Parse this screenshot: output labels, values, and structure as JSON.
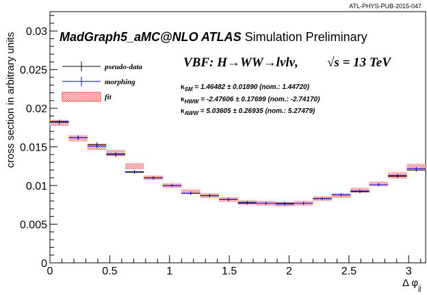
{
  "colors": {
    "pseudo_data": "#000000",
    "morphing": "#0000ff",
    "fit_fill": "#ff4d4d",
    "fit_hatch_bg": "#ffd6d6",
    "axes": "#000000"
  },
  "header": {
    "ref": "ATL-PHYS-PUB-2015-047"
  },
  "titles": {
    "main_bold": "MadGraph5_aMC@NLO ATLAS",
    "main_rest": " Simulation Preliminary",
    "process": "VBF: H→WW→lνlν,",
    "energy": "√s = 13 TeV"
  },
  "legend": [
    {
      "label": "pseudo-data",
      "style": "pseudo"
    },
    {
      "label": "morphing",
      "style": "morph"
    },
    {
      "label": "fit",
      "style": "fit"
    }
  ],
  "kappas": [
    {
      "sym": "κ",
      "sub": "SM",
      "text": " = 1.46482 ± 0.01890 (nom.: 1.44720)"
    },
    {
      "sym": "κ",
      "sub": "HWW",
      "text": " = -2.47606 ± 0.17699 (nom.: -2.74170)"
    },
    {
      "sym": "κ",
      "sub": "AWW",
      "text": " = 5.03605 ± 0.26935 (nom.: 5.27479)"
    }
  ],
  "chart_data": {
    "type": "histogram",
    "xlabel": "Δ φ",
    "xlabel_sub": "jj",
    "ylabel": "cross section in arbitrary units",
    "xlim": [
      0,
      3.1416
    ],
    "ylim": [
      0,
      0.0325
    ],
    "xticks": [
      0,
      0.5,
      1,
      1.5,
      2,
      2.5,
      3
    ],
    "xtick_labels": [
      "0",
      "0.5",
      "1",
      "1.5",
      "2",
      "2.5",
      "3"
    ],
    "yticks": [
      0,
      0.005,
      0.01,
      0.015,
      0.02,
      0.025,
      0.03
    ],
    "ytick_labels": [
      "0",
      "0.005",
      "0.01",
      "0.015",
      "0.02",
      "0.025",
      "0.03"
    ],
    "bin_width": 0.1571,
    "bin_centers": [
      0.0785,
      0.2356,
      0.3927,
      0.5498,
      0.7069,
      0.8639,
      1.021,
      1.1781,
      1.3352,
      1.4923,
      1.6493,
      1.8064,
      1.9635,
      2.1206,
      2.2777,
      2.4347,
      2.5918,
      2.7489,
      2.906,
      3.0631
    ],
    "series": [
      {
        "name": "pseudo-data",
        "values": [
          0.0182,
          0.0162,
          0.0153,
          0.014,
          0.0117,
          0.011,
          0.01,
          0.009,
          0.0087,
          0.0082,
          0.0078,
          0.0077,
          0.0077,
          0.0077,
          0.0083,
          0.0088,
          0.0092,
          0.0101,
          0.0112,
          0.012
        ],
        "errors": [
          0.0003,
          0.0003,
          0.0003,
          0.0003,
          0.0002,
          0.0002,
          0.0002,
          0.0002,
          0.0002,
          0.0002,
          0.0002,
          0.0002,
          0.0002,
          0.0002,
          0.0002,
          0.0002,
          0.0002,
          0.0002,
          0.0002,
          0.0002
        ]
      },
      {
        "name": "morphing",
        "values": [
          0.0183,
          0.0162,
          0.0151,
          0.0141,
          0.0118,
          0.011,
          0.01,
          0.009,
          0.0087,
          0.0082,
          0.0077,
          0.0077,
          0.0076,
          0.0077,
          0.0083,
          0.0088,
          0.0093,
          0.0101,
          0.0113,
          0.0122
        ],
        "errors": [
          0.0002,
          0.0002,
          0.0002,
          0.0002,
          0.0002,
          0.0002,
          0.0002,
          0.0002,
          0.0002,
          0.0002,
          0.0002,
          0.0002,
          0.0002,
          0.0002,
          0.0002,
          0.0002,
          0.0002,
          0.0002,
          0.0002,
          0.0002
        ]
      },
      {
        "name": "fit",
        "values": [
          0.0181,
          0.0161,
          0.015,
          0.0142,
          0.0125,
          0.011,
          0.01,
          0.0092,
          0.0087,
          0.0082,
          0.0078,
          0.0077,
          0.0076,
          0.0077,
          0.0083,
          0.0087,
          0.0094,
          0.0102,
          0.0113,
          0.0124
        ],
        "band": [
          0.0004,
          0.0004,
          0.0004,
          0.0004,
          0.0004,
          0.0003,
          0.0003,
          0.0003,
          0.0003,
          0.0003,
          0.0003,
          0.0003,
          0.0003,
          0.0003,
          0.0003,
          0.0003,
          0.0003,
          0.0003,
          0.0004,
          0.0004
        ]
      }
    ]
  }
}
